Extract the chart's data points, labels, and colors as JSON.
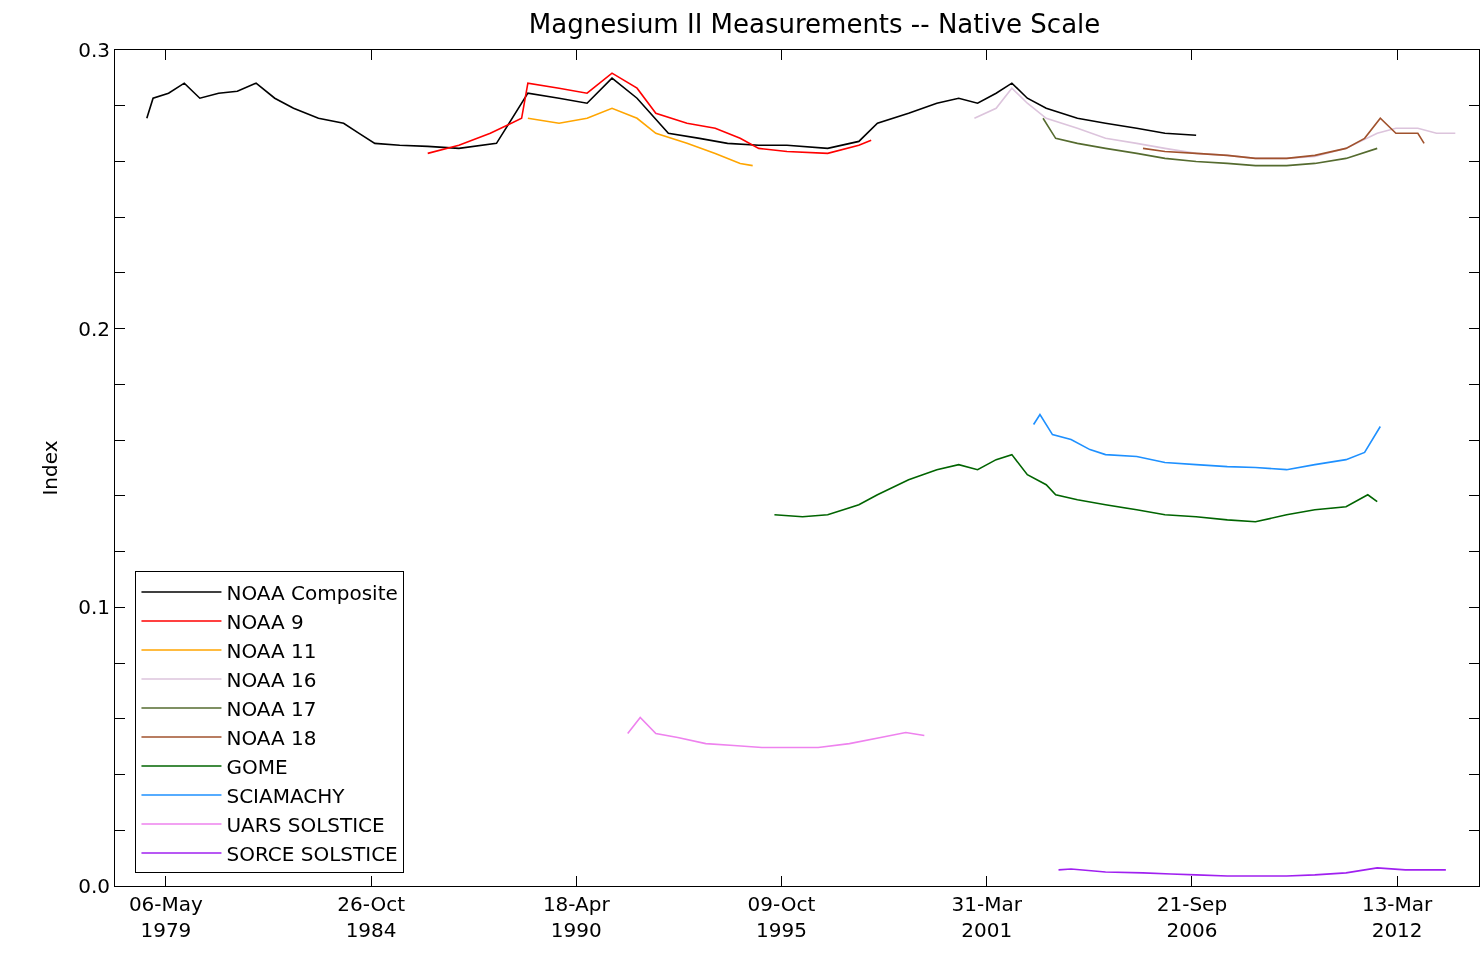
{
  "chart_data": {
    "type": "line",
    "title": "Magnesium II Measurements -- Native Scale",
    "ylabel": "Index",
    "xlim": [
      "1977-12-26",
      "2014-05-20"
    ],
    "xticks": [
      {
        "value": "1979-05-06",
        "label": "06-May\n1979"
      },
      {
        "value": "1984-10-26",
        "label": "26-Oct\n1984"
      },
      {
        "value": "1990-04-18",
        "label": "18-Apr\n1990"
      },
      {
        "value": "1995-10-09",
        "label": "09-Oct\n1995"
      },
      {
        "value": "2001-03-31",
        "label": "31-Mar\n2001"
      },
      {
        "value": "2006-09-21",
        "label": "21-Sep\n2006"
      },
      {
        "value": "2012-03-13",
        "label": "13-Mar\n2012"
      }
    ],
    "ylim": [
      0,
      0.3
    ],
    "yticks": [
      {
        "value": 0,
        "label": "0.0"
      },
      {
        "value": 0.02,
        "label": null
      },
      {
        "value": 0.04,
        "label": null
      },
      {
        "value": 0.06,
        "label": null
      },
      {
        "value": 0.08,
        "label": null
      },
      {
        "value": 0.1,
        "label": "0.1"
      },
      {
        "value": 0.12,
        "label": null
      },
      {
        "value": 0.14,
        "label": null
      },
      {
        "value": 0.16,
        "label": null
      },
      {
        "value": 0.18,
        "label": null
      },
      {
        "value": 0.2,
        "label": "0.2"
      },
      {
        "value": 0.22,
        "label": null
      },
      {
        "value": 0.24,
        "label": null
      },
      {
        "value": 0.26,
        "label": null
      },
      {
        "value": 0.28,
        "label": null
      },
      {
        "value": 0.3,
        "label": "0.3"
      }
    ],
    "legend": "bottom left",
    "marker": "none",
    "line_style": "solid",
    "series": [
      {
        "name": "NOAA Composite",
        "color": "#000000",
        "x": [
          "1978-11",
          "1979-01",
          "1979-06",
          "1979-11",
          "1980-04",
          "1980-10",
          "1981-04",
          "1981-10",
          "1982-04",
          "1982-10",
          "1983-06",
          "1984-02",
          "1984-07",
          "1984-12",
          "1985-08",
          "1986-05",
          "1987-03",
          "1988-03",
          "1989-01",
          "1989-11",
          "1990-08",
          "1991-04",
          "1991-12",
          "1992-10",
          "1993-08",
          "1994-05",
          "1995-03",
          "1995-12",
          "1997-01",
          "1997-11",
          "1998-05",
          "1999-03",
          "1999-12",
          "2000-07",
          "2001-01",
          "2001-07",
          "2001-12",
          "2002-05",
          "2002-11",
          "2003-09",
          "2004-06",
          "2005-04",
          "2006-01",
          "2006-11"
        ],
        "values": [
          0.2755,
          0.2827,
          0.2845,
          0.2881,
          0.2827,
          0.2845,
          0.2852,
          0.2881,
          0.2827,
          0.2791,
          0.2755,
          0.2737,
          0.2701,
          0.2665,
          0.2658,
          0.2654,
          0.2647,
          0.2665,
          0.2845,
          0.2827,
          0.2809,
          0.2899,
          0.2827,
          0.2701,
          0.2683,
          0.2665,
          0.2658,
          0.2658,
          0.2647,
          0.2672,
          0.2737,
          0.2773,
          0.2809,
          0.2827,
          0.2809,
          0.2845,
          0.2881,
          0.2827,
          0.2791,
          0.2755,
          0.2737,
          0.2719,
          0.2701,
          0.2694
        ]
      },
      {
        "name": "NOAA 9",
        "color": "#ff0000",
        "x": [
          "1986-05",
          "1987-03",
          "1988-01",
          "1988-11",
          "1989-01",
          "1989-11",
          "1990-08",
          "1991-04",
          "1991-12",
          "1992-06",
          "1993-04",
          "1994-01",
          "1994-09",
          "1995-03",
          "1995-12",
          "1997-01",
          "1997-11",
          "1998-03"
        ],
        "values": [
          0.2629,
          0.2658,
          0.2701,
          0.2755,
          0.2881,
          0.2863,
          0.2845,
          0.2917,
          0.2863,
          0.2773,
          0.2737,
          0.2719,
          0.2683,
          0.2647,
          0.2636,
          0.2629,
          0.2658,
          0.2676
        ]
      },
      {
        "name": "NOAA 11",
        "color": "#ffa500",
        "x": [
          "1989-01",
          "1989-11",
          "1990-08",
          "1991-04",
          "1991-12",
          "1992-06",
          "1993-04",
          "1994-01",
          "1994-09",
          "1995-01"
        ],
        "values": [
          0.2755,
          0.2737,
          0.2755,
          0.2791,
          0.2755,
          0.2701,
          0.2665,
          0.2629,
          0.2593,
          0.2585
        ]
      },
      {
        "name": "NOAA 16",
        "color": "#dcc4dc",
        "x": [
          "2000-12",
          "2001-07",
          "2001-12",
          "2002-05",
          "2002-11",
          "2003-09",
          "2004-06",
          "2005-04",
          "2006-01",
          "2006-11",
          "2007-09",
          "2008-06",
          "2009-04",
          "2010-01",
          "2010-11",
          "2011-09",
          "2012-03",
          "2012-10",
          "2013-04",
          "2013-10"
        ],
        "values": [
          0.2755,
          0.2791,
          0.2863,
          0.2809,
          0.2755,
          0.2719,
          0.2683,
          0.2665,
          0.2647,
          0.2629,
          0.2622,
          0.2611,
          0.2611,
          0.2618,
          0.2647,
          0.2701,
          0.2719,
          0.2719,
          0.2701,
          0.2701
        ]
      },
      {
        "name": "NOAA 17",
        "color": "#556b2f",
        "x": [
          "2002-10",
          "2003-02",
          "2003-09",
          "2004-06",
          "2005-04",
          "2006-01",
          "2006-11",
          "2007-09",
          "2008-06",
          "2009-04",
          "2010-01",
          "2010-11",
          "2011-09"
        ],
        "values": [
          0.2755,
          0.2683,
          0.2665,
          0.2647,
          0.2629,
          0.2611,
          0.26,
          0.2593,
          0.2585,
          0.2585,
          0.2593,
          0.2611,
          0.2647
        ]
      },
      {
        "name": "NOAA 18",
        "color": "#a0522d",
        "x": [
          "2005-06",
          "2006-01",
          "2006-11",
          "2007-09",
          "2008-06",
          "2009-04",
          "2010-01",
          "2010-11",
          "2011-05",
          "2011-10",
          "2012-03",
          "2012-10",
          "2012-12"
        ],
        "values": [
          0.2647,
          0.2636,
          0.2629,
          0.2622,
          0.2611,
          0.2611,
          0.2622,
          0.2647,
          0.2683,
          0.2755,
          0.2701,
          0.2701,
          0.2665
        ]
      },
      {
        "name": "GOME",
        "color": "#006400",
        "x": [
          "1995-08",
          "1996-05",
          "1997-01",
          "1997-11",
          "1998-05",
          "1999-03",
          "1999-12",
          "2000-07",
          "2001-01",
          "2001-07",
          "2001-12",
          "2002-05",
          "2002-11",
          "2003-02",
          "2003-09",
          "2004-06",
          "2005-04",
          "2006-01",
          "2006-11",
          "2007-09",
          "2008-06",
          "2009-04",
          "2010-01",
          "2010-11",
          "2011-06",
          "2011-09"
        ],
        "values": [
          0.1332,
          0.1325,
          0.1332,
          0.1368,
          0.1404,
          0.1458,
          0.1494,
          0.1512,
          0.1494,
          0.153,
          0.1548,
          0.1476,
          0.144,
          0.1404,
          0.1386,
          0.1368,
          0.135,
          0.1332,
          0.1325,
          0.1314,
          0.1307,
          0.1332,
          0.135,
          0.1361,
          0.1404,
          0.1379
        ]
      },
      {
        "name": "SCIAMACHY",
        "color": "#1e90ff",
        "x": [
          "2002-07",
          "2002-09",
          "2003-01",
          "2003-07",
          "2004-01",
          "2004-06",
          "2005-04",
          "2006-01",
          "2006-11",
          "2007-09",
          "2008-06",
          "2009-04",
          "2010-01",
          "2010-11",
          "2011-05",
          "2011-10"
        ],
        "values": [
          0.1656,
          0.1692,
          0.162,
          0.1602,
          0.1566,
          0.1548,
          0.1541,
          0.152,
          0.1512,
          0.1505,
          0.1502,
          0.1494,
          0.1512,
          0.153,
          0.1556,
          0.1649
        ]
      },
      {
        "name": "UARS SOLSTICE",
        "color": "#ee82ee",
        "x": [
          "1991-09",
          "1992-01",
          "1992-06",
          "1993-01",
          "1993-10",
          "1994-07",
          "1995-04",
          "1996-01",
          "1996-10",
          "1997-08",
          "1998-06",
          "1999-02",
          "1999-08"
        ],
        "values": [
          0.0547,
          0.0605,
          0.0547,
          0.0533,
          0.0511,
          0.0504,
          0.0497,
          0.0497,
          0.0497,
          0.0511,
          0.0533,
          0.0551,
          0.054
        ]
      },
      {
        "name": "SORCE SOLSTICE",
        "color": "#a020f0",
        "x": [
          "2003-03",
          "2003-07",
          "2004-06",
          "2005-06",
          "2006-03",
          "2006-11",
          "2007-09",
          "2008-06",
          "2009-04",
          "2010-01",
          "2010-11",
          "2011-09",
          "2012-06",
          "2013-07"
        ],
        "values": [
          0.0058,
          0.0061,
          0.005,
          0.0047,
          0.0043,
          0.004,
          0.0036,
          0.0036,
          0.0036,
          0.004,
          0.0047,
          0.0065,
          0.0058,
          0.0058
        ]
      }
    ]
  }
}
